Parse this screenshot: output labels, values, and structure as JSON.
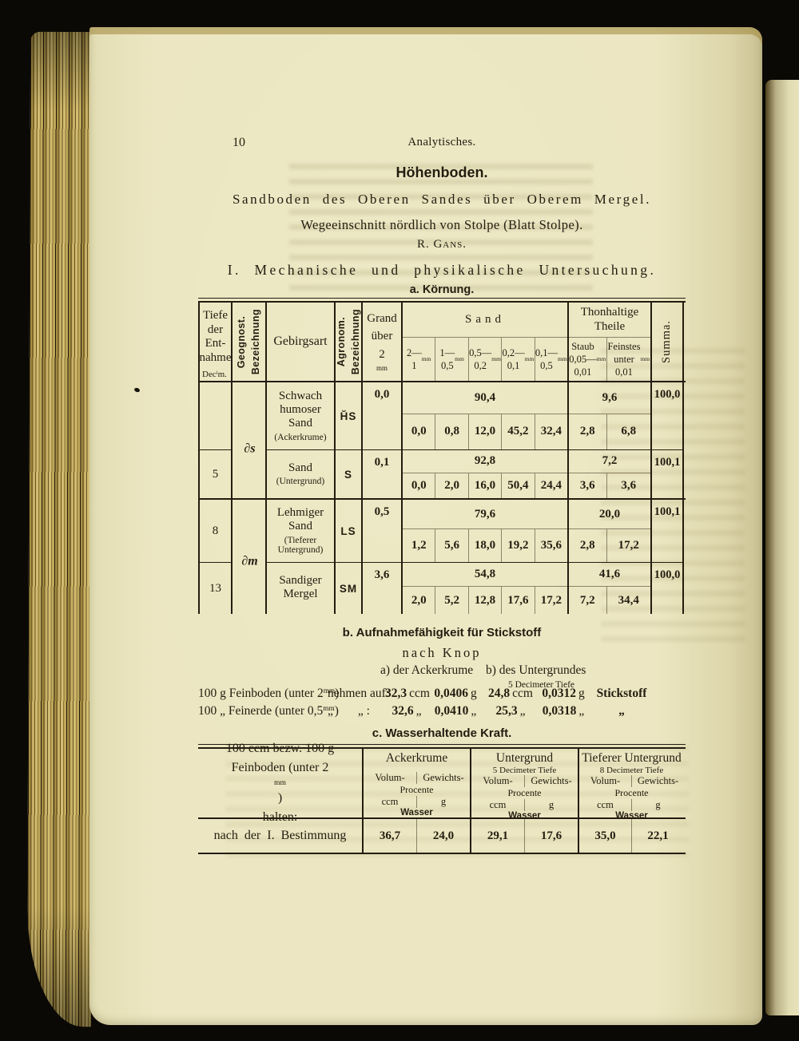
{
  "page": {
    "number": "10",
    "running_title": "Analytisches."
  },
  "titles": {
    "heading": "Höhenboden.",
    "subtitle": "Sandboden des Oberen Sandes über Oberem Mergel.",
    "location": "Wegeeinschnitt nördlich von Stolpe (Blatt Stolpe).",
    "author": "R. Gans.",
    "section_1": "I. Mechanische und physikalische Untersuchung.",
    "section_a": "a. Körnung."
  },
  "kornung": {
    "col_tiefe": [
      "Tiefe",
      "der",
      "Ent-",
      "nahme"
    ],
    "col_tiefe_unit": "Dec^i^m.",
    "col_geognost": [
      "Geognost.",
      "Bezeichnung"
    ],
    "col_gebirgsart": "Gebirgsart",
    "col_agronom": [
      "Agronom.",
      "Bezeichnung"
    ],
    "col_grand": [
      "Grand",
      "über",
      "2^mm^"
    ],
    "col_sand": "Sand",
    "sand_sub": [
      [
        "2—",
        "1^mm^"
      ],
      [
        "1—",
        "0,5^mm^"
      ],
      [
        "0,5—",
        "0,2^mm^"
      ],
      [
        "0,2—",
        "0,1^mm^"
      ],
      [
        "0,1—",
        "0,5^mm^"
      ]
    ],
    "col_thon": [
      "Thonhaltige",
      "Theile"
    ],
    "thon_sub": [
      [
        "Staub",
        "0,05—",
        "0,01^mm^"
      ],
      [
        "Feinstes",
        "unter",
        "0,01^mm^"
      ]
    ],
    "col_summa": "Summa.",
    "geognost_pair1": "∂s",
    "geognost_pair2": "∂m",
    "rows": [
      {
        "tiefe": "",
        "gebirgsart": [
          "Schwach",
          "humoser",
          "Sand"
        ],
        "note": [
          "(Ackerkrume)"
        ],
        "agronom": "H̆S",
        "grand": "0,0",
        "sand_total": "90,4",
        "sand": [
          "0,0",
          "0,8",
          "12,0",
          "45,2",
          "32,4"
        ],
        "thon_total": "9,6",
        "thon": [
          "2,8",
          "6,8"
        ],
        "summa": "100,0"
      },
      {
        "tiefe": "5",
        "gebirgsart": [
          "Sand"
        ],
        "note": [
          "(Untergrund)"
        ],
        "agronom": "S",
        "grand": "0,1",
        "sand_total": "92,8",
        "sand": [
          "0,0",
          "2,0",
          "16,0",
          "50,4",
          "24,4"
        ],
        "thon_total": "7,2",
        "thon": [
          "3,6",
          "3,6"
        ],
        "summa": "100,1"
      },
      {
        "tiefe": "8",
        "gebirgsart": [
          "Lehmiger",
          "Sand"
        ],
        "note": [
          "(Tieferer",
          "Untergrund)"
        ],
        "agronom": "LS",
        "grand": "0,5",
        "sand_total": "79,6",
        "sand": [
          "1,2",
          "5,6",
          "18,0",
          "19,2",
          "35,6"
        ],
        "thon_total": "20,0",
        "thon": [
          "2,8",
          "17,2"
        ],
        "summa": "100,1"
      },
      {
        "tiefe": "13",
        "gebirgsart": [
          "Sandiger",
          "Mergel"
        ],
        "note": [],
        "agronom": "SM",
        "grand": "3,6",
        "sand_total": "54,8",
        "sand": [
          "2,0",
          "5,2",
          "12,8",
          "17,6",
          "17,2"
        ],
        "thon_total": "41,6",
        "thon": [
          "7,2",
          "34,4"
        ],
        "summa": "100,0"
      }
    ]
  },
  "stickstoff": {
    "title": "b. Aufnahmefähigkeit für Stickstoff",
    "subtitle": "nach Knop",
    "head_a": "a) der Ackerkrume",
    "head_b": "b) des Untergrundes",
    "head_b_sub": "5 Decimeter Tiefe",
    "rows": [
      {
        "label": "100 g Feinboden (unter 2^mm^)",
        "verb": "nehmen auf:",
        "v1": {
          "n": "32,3",
          "u": "ccm"
        },
        "v2": {
          "n": "0,0406",
          "u": "g"
        },
        "v3": {
          "n": "24,8",
          "u": "ccm"
        },
        "v4": {
          "n": "0,0312",
          "u": "g"
        },
        "suffix": "Stickstoff"
      },
      {
        "label": "100 „ Feinerde (unter 0,5^mm^)",
        "verb": "„  „ :",
        "v1": {
          "n": "32,6",
          "u": "„"
        },
        "v2": {
          "n": "0,0410",
          "u": "„"
        },
        "v3": {
          "n": "25,3",
          "u": "„"
        },
        "v4": {
          "n": "0,0318",
          "u": "„"
        },
        "suffix": "„"
      }
    ]
  },
  "wasser": {
    "title": "c. Wasserhaltende Kraft.",
    "stub": [
      "100 ccm bezw. 100 g",
      "Feinboden (unter 2^mm^)",
      "halten:"
    ],
    "groups": [
      {
        "title": "Ackerkrume",
        "subtitle": ""
      },
      {
        "title": "Untergrund",
        "subtitle": "5 Decimeter Tiefe"
      },
      {
        "title": "Tieferer Untergrund",
        "subtitle": "8 Decimeter Tiefe"
      }
    ],
    "sub_left": "Volum-",
    "sub_right": "Gewichts-",
    "sub_mid": "Procente",
    "unit_left": "ccm",
    "unit_right": "g",
    "unit_mid": "Wasser",
    "row_label": "nach der I. Bestimmung",
    "values": [
      [
        "36,7",
        "24,0"
      ],
      [
        "29,1",
        "17,6"
      ],
      [
        "35,0",
        "22,1"
      ]
    ]
  }
}
